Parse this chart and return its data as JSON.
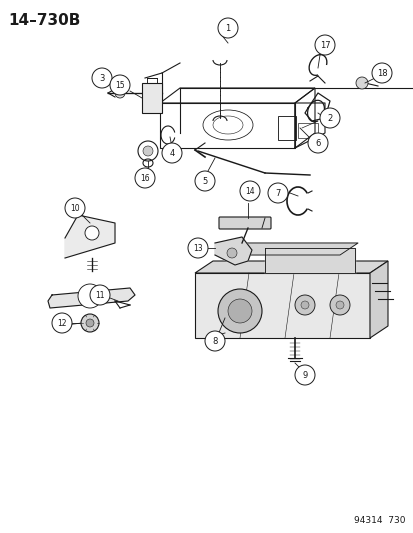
{
  "title": "14–730B",
  "bg_color": "#ffffff",
  "line_color": "#1a1a1a",
  "footer_text": "94314  730",
  "fig_w": 4.14,
  "fig_h": 5.33,
  "dpi": 100
}
